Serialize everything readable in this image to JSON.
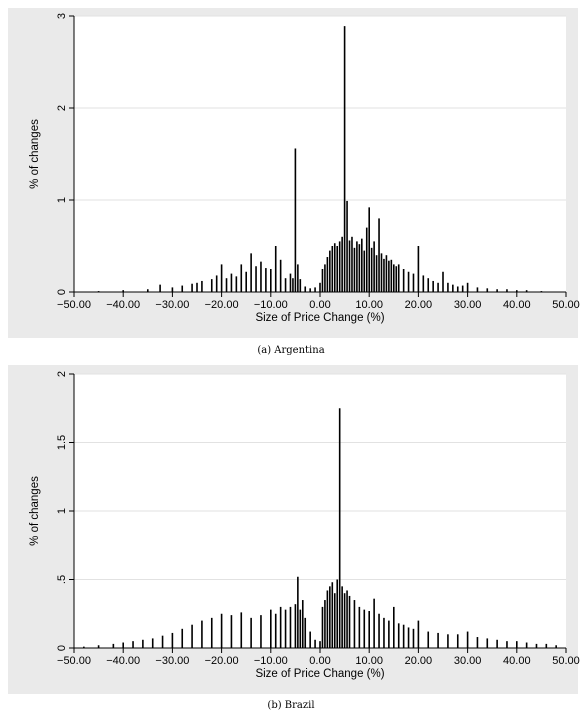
{
  "chart_data": [
    {
      "type": "bar",
      "caption": "(a) Argentina",
      "xlabel": "Size of Price Change (%)",
      "ylabel": "% of changes",
      "xlim": [
        -50,
        50
      ],
      "ylim": [
        0,
        3
      ],
      "xticks": [
        "−50.00",
        "−40.00",
        "−30.00",
        "−20.00",
        "−10.00",
        "0.00",
        "10.00",
        "20.00",
        "30.00",
        "40.00",
        "50.00"
      ],
      "yticks": [
        "0",
        "1",
        "2",
        "3"
      ],
      "grid": true,
      "x": [
        -45,
        -40,
        -35,
        -32.5,
        -30,
        -28,
        -26,
        -25,
        -24,
        -22,
        -21,
        -20,
        -19,
        -18,
        -17,
        -16,
        -15,
        -14,
        -13,
        -12,
        -11,
        -10,
        -9,
        -8,
        -7,
        -6,
        -5.5,
        -5,
        -4.5,
        -4,
        -3,
        -2,
        -1,
        0,
        0.5,
        1,
        1.5,
        2,
        2.5,
        3,
        3.5,
        4,
        4.5,
        5,
        5.5,
        6,
        6.5,
        7,
        7.5,
        8,
        8.5,
        9,
        9.5,
        10,
        10.5,
        11,
        11.5,
        12,
        12.5,
        13,
        13.5,
        14,
        14.5,
        15,
        15.5,
        16,
        17,
        18,
        19,
        20,
        21,
        22,
        23,
        24,
        25,
        26,
        27,
        28,
        29,
        30,
        32,
        34,
        36,
        38,
        40,
        42,
        45
      ],
      "values": [
        0.01,
        0.02,
        0.03,
        0.08,
        0.05,
        0.07,
        0.09,
        0.1,
        0.12,
        0.14,
        0.18,
        0.3,
        0.15,
        0.2,
        0.17,
        0.3,
        0.22,
        0.42,
        0.28,
        0.33,
        0.26,
        0.25,
        0.5,
        0.35,
        0.15,
        0.2,
        0.15,
        1.56,
        0.3,
        0.14,
        0.06,
        0.04,
        0.05,
        0.1,
        0.25,
        0.3,
        0.38,
        0.45,
        0.5,
        0.53,
        0.5,
        0.55,
        0.6,
        2.89,
        0.99,
        0.56,
        0.6,
        0.48,
        0.55,
        0.52,
        0.58,
        0.45,
        0.7,
        0.92,
        0.48,
        0.55,
        0.4,
        0.8,
        0.42,
        0.36,
        0.4,
        0.34,
        0.35,
        0.3,
        0.28,
        0.3,
        0.25,
        0.22,
        0.2,
        0.5,
        0.18,
        0.15,
        0.12,
        0.1,
        0.22,
        0.1,
        0.08,
        0.06,
        0.07,
        0.1,
        0.05,
        0.04,
        0.03,
        0.03,
        0.02,
        0.02,
        0.01
      ]
    },
    {
      "type": "bar",
      "caption": "(b) Brazil",
      "xlabel": "Size of Price Change (%)",
      "ylabel": "% of changes",
      "xlim": [
        -50,
        50
      ],
      "ylim": [
        0,
        2
      ],
      "xticks": [
        "−50.00",
        "−40.00",
        "−30.00",
        "−20.00",
        "−10.00",
        "0.00",
        "10.00",
        "20.00",
        "30.00",
        "40.00",
        "50.00"
      ],
      "yticks": [
        "0",
        ".5",
        "1",
        "1.5",
        "2"
      ],
      "grid": true,
      "x": [
        -48,
        -45,
        -42,
        -40,
        -38,
        -36,
        -34,
        -32,
        -30,
        -28,
        -26,
        -24,
        -22,
        -20,
        -18,
        -16,
        -14,
        -12,
        -10,
        -9,
        -8,
        -7,
        -6,
        -5,
        -4.5,
        -4,
        -3.5,
        -3,
        -2,
        -1,
        0,
        0.5,
        1,
        1.5,
        2,
        2.5,
        3,
        3.5,
        4,
        4.5,
        5,
        5.5,
        6,
        7,
        8,
        9,
        10,
        11,
        12,
        13,
        14,
        15,
        16,
        17,
        18,
        19,
        20,
        22,
        24,
        26,
        28,
        30,
        32,
        34,
        36,
        38,
        40,
        42,
        44,
        46,
        48
      ],
      "values": [
        0.01,
        0.02,
        0.03,
        0.04,
        0.05,
        0.06,
        0.07,
        0.09,
        0.11,
        0.14,
        0.17,
        0.2,
        0.22,
        0.25,
        0.24,
        0.26,
        0.22,
        0.24,
        0.28,
        0.25,
        0.3,
        0.28,
        0.3,
        0.32,
        0.52,
        0.28,
        0.35,
        0.22,
        0.12,
        0.06,
        0.05,
        0.3,
        0.35,
        0.42,
        0.45,
        0.48,
        0.4,
        0.5,
        1.75,
        0.45,
        0.4,
        0.42,
        0.38,
        0.35,
        0.3,
        0.28,
        0.27,
        0.36,
        0.25,
        0.22,
        0.2,
        0.3,
        0.18,
        0.17,
        0.15,
        0.14,
        0.2,
        0.12,
        0.11,
        0.1,
        0.1,
        0.12,
        0.08,
        0.07,
        0.06,
        0.05,
        0.05,
        0.04,
        0.03,
        0.03,
        0.02
      ]
    }
  ]
}
